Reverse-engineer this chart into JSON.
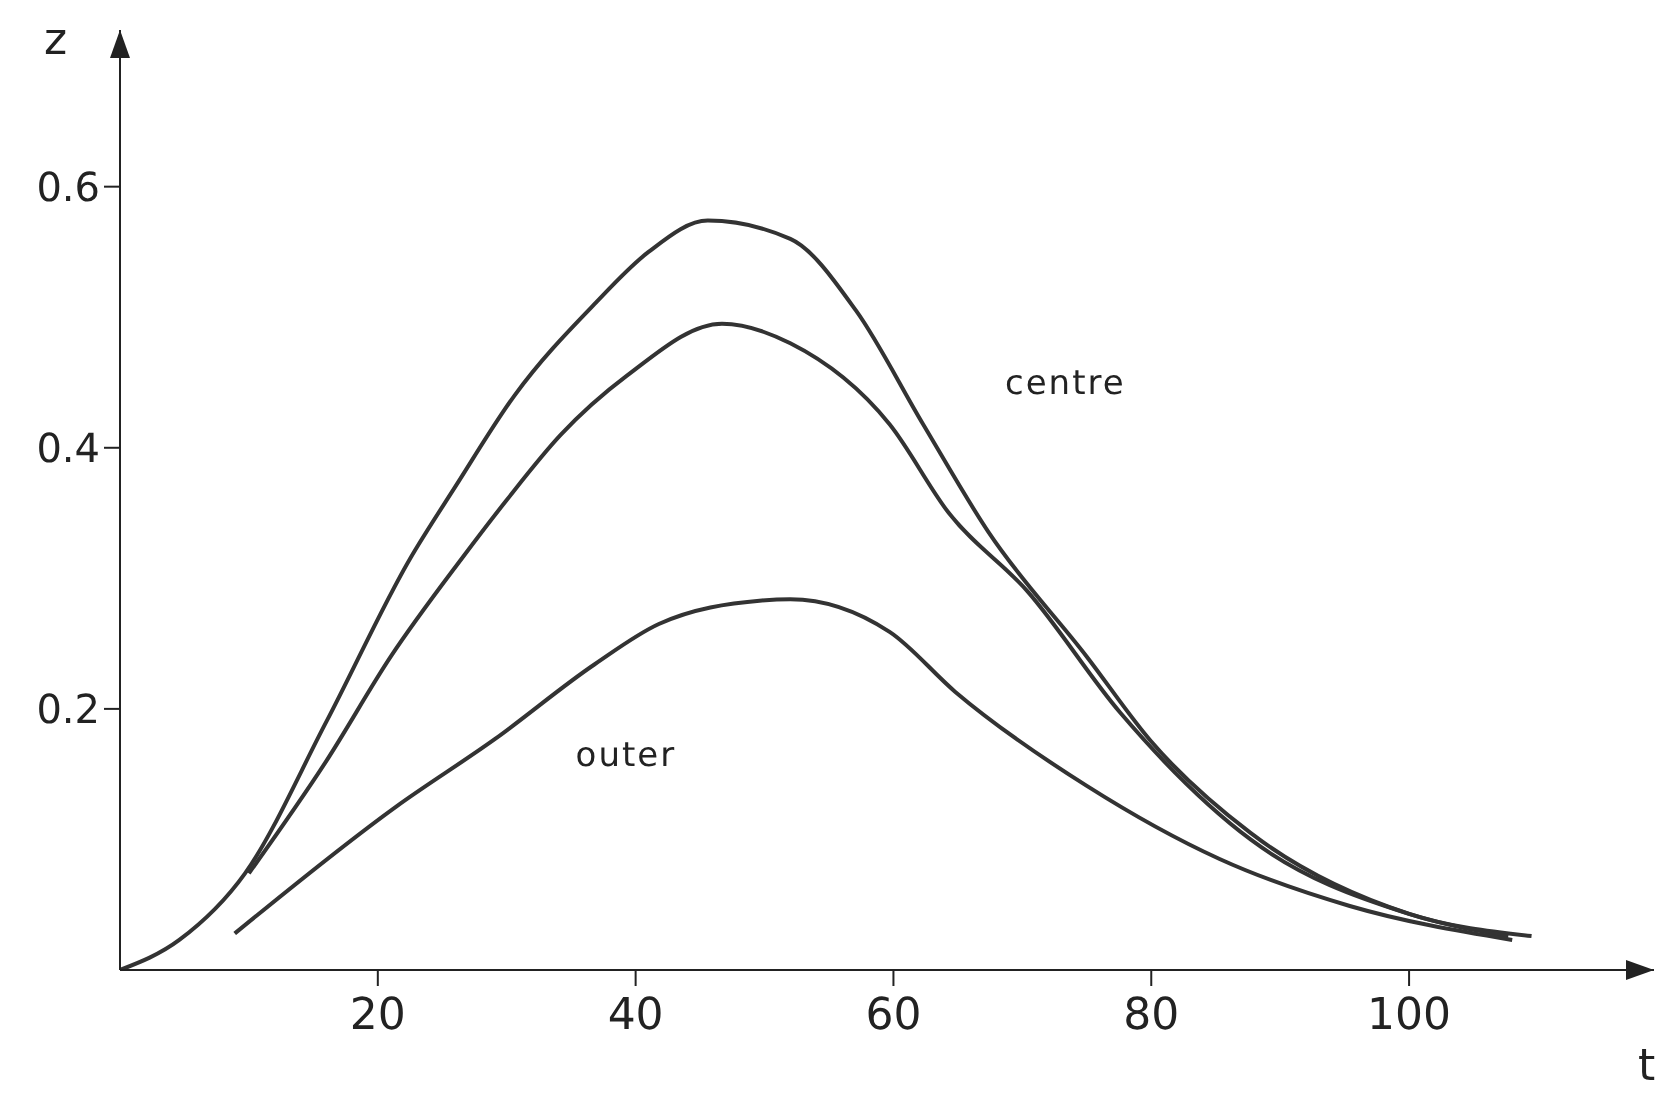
{
  "chart_data": {
    "type": "line",
    "xlabel": "t",
    "ylabel": "z",
    "xlim": [
      0,
      119
    ],
    "ylim": [
      0,
      0.72
    ],
    "xticks": [
      20,
      40,
      60,
      80,
      100
    ],
    "yticks": [
      0.2,
      0.4,
      0.6
    ],
    "grid": false,
    "marker": "none",
    "line_style": "solid",
    "series": [
      {
        "color": "#333333",
        "x": [
          0,
          4.6,
          9.7,
          16,
          22.5,
          26,
          30.6,
          36.8,
          41,
          45.6,
          52,
          57.1,
          62.3,
          67.4,
          75,
          80,
          87.7,
          100,
          109.5
        ],
        "values": [
          0,
          0.023,
          0.074,
          0.19,
          0.315,
          0.37,
          0.44,
          0.51,
          0.55,
          0.574,
          0.56,
          0.505,
          0.418,
          0.335,
          0.24,
          0.175,
          0.105,
          0.043,
          0.026
        ]
      },
      {
        "color": "#333333",
        "x": [
          10,
          16,
          21,
          26.5,
          30,
          34.2,
          39.3,
          46.7,
          52,
          59.7,
          64.3,
          70.4,
          77.6,
          87.7,
          100,
          107.7
        ],
        "values": [
          0.074,
          0.16,
          0.24,
          0.315,
          0.36,
          0.41,
          0.455,
          0.495,
          0.48,
          0.418,
          0.35,
          0.29,
          0.197,
          0.1,
          0.043,
          0.026
        ]
      },
      {
        "color": "#333333",
        "x": [
          8.9,
          21.4,
          29.1,
          36.8,
          41.8,
          49.8,
          52,
          59.7,
          64.8,
          75,
          85.3,
          95.4,
          108
        ],
        "values": [
          0.028,
          0.125,
          0.177,
          0.234,
          0.265,
          0.283,
          0.284,
          0.259,
          0.213,
          0.141,
          0.085,
          0.049,
          0.023
        ]
      }
    ],
    "annotations": [
      {
        "text": "centre",
        "x": 64,
        "y": 0.38
      },
      {
        "text": "outer",
        "x": 31,
        "y": 0.19
      }
    ]
  }
}
